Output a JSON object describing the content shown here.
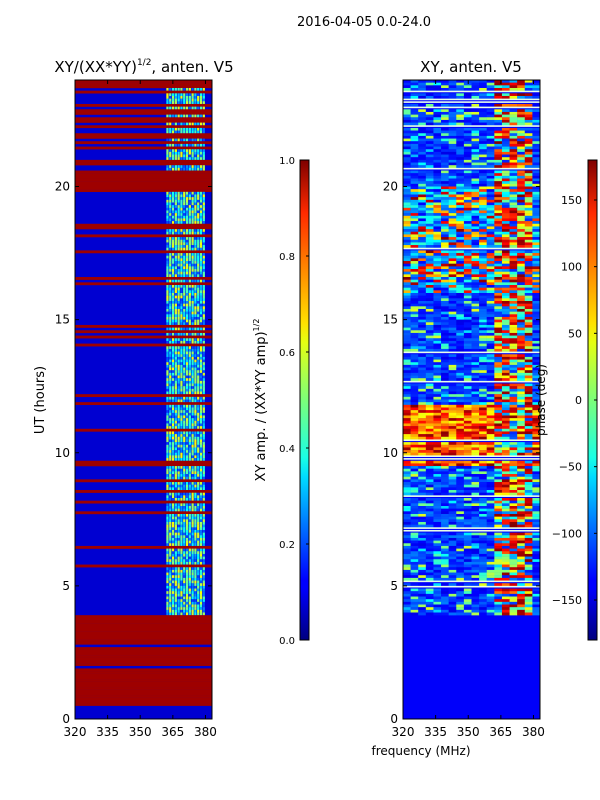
{
  "suptitle": "2016-04-05 0.0-24.0",
  "chart_data": [
    {
      "type": "heatmap",
      "title": "XY/(XX*YY)^{1/2}, anten. V5",
      "title_main": "XY/(XX*YY)",
      "title_sup": "1/2",
      "title_tail": ", anten. V5",
      "xlabel": "",
      "ylabel": "UT (hours)",
      "xlim": [
        320,
        383
      ],
      "ylim": [
        0,
        24
      ],
      "xticks": [
        320,
        335,
        350,
        365,
        380
      ],
      "yticks": [
        0,
        5,
        10,
        15,
        20
      ],
      "colormap": "jet",
      "value_range": [
        0.0,
        1.0
      ],
      "description_regions": [
        {
          "ut": [
            0,
            3.9
          ],
          "freq": [
            320,
            383
          ],
          "level": 1.0
        },
        {
          "ut": [
            3.9,
            24
          ],
          "freq": [
            320,
            360
          ],
          "level": 0.05
        },
        {
          "ut": [
            3.9,
            24
          ],
          "freq": [
            361,
            380
          ],
          "level": 0.4
        }
      ]
    },
    {
      "type": "heatmap",
      "title": "XY, anten. V5",
      "xlabel": "frequency (MHz)",
      "ylabel": "",
      "xlim": [
        320,
        383
      ],
      "ylim": [
        0,
        24
      ],
      "xticks": [
        320,
        335,
        350,
        365,
        380
      ],
      "yticks": [
        0,
        5,
        10,
        15,
        20
      ],
      "colormap": "jet",
      "value_range": [
        -180,
        180
      ]
    }
  ],
  "colorbars": [
    {
      "label_main": "XY amp. / (XX*YY amp)",
      "label_sup": "1/2",
      "range": [
        0.0,
        1.0
      ],
      "ticks": [
        "0.0",
        "0.2",
        "0.4",
        "0.6",
        "0.8",
        "1.0"
      ],
      "tick_values": [
        0.0,
        0.2,
        0.4,
        0.6,
        0.8,
        1.0
      ]
    },
    {
      "label": "phase (deg)",
      "range": [
        -180,
        180
      ],
      "ticks": [
        "−150",
        "−100",
        "−50",
        "0",
        "50",
        "100",
        "150"
      ],
      "tick_values": [
        -150,
        -100,
        -50,
        0,
        50,
        100,
        150
      ]
    }
  ]
}
